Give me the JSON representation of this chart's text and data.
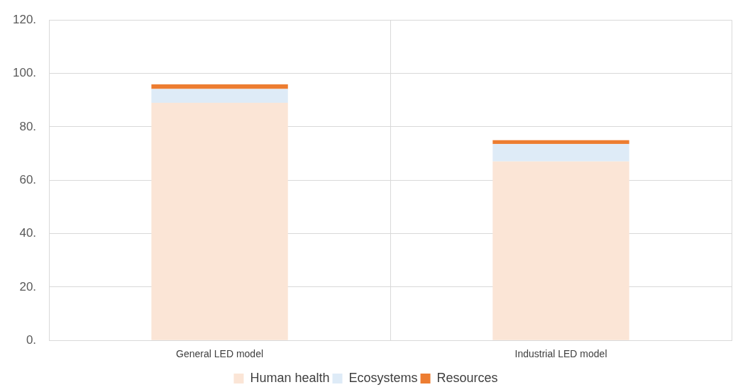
{
  "chart_data": {
    "type": "bar",
    "stacked": true,
    "categories": [
      "General LED model",
      "Industrial LED model"
    ],
    "series": [
      {
        "name": "Human health",
        "color": "#fbe5d6",
        "values": [
          89,
          67
        ]
      },
      {
        "name": "Ecosystems",
        "color": "#deebf7",
        "values": [
          5.2,
          6.5
        ]
      },
      {
        "name": "Resources",
        "color": "#ed7d31",
        "values": [
          1.7,
          1.5
        ]
      }
    ],
    "ylim": [
      0,
      120
    ],
    "yticks": [
      {
        "value": 0,
        "label": "0."
      },
      {
        "value": 20,
        "label": "20."
      },
      {
        "value": 40,
        "label": "40."
      },
      {
        "value": 60,
        "label": "60."
      },
      {
        "value": 80,
        "label": "80."
      },
      {
        "value": 100,
        "label": "100."
      },
      {
        "value": 120,
        "label": "120."
      }
    ],
    "grid": true,
    "legend": "bottom"
  }
}
